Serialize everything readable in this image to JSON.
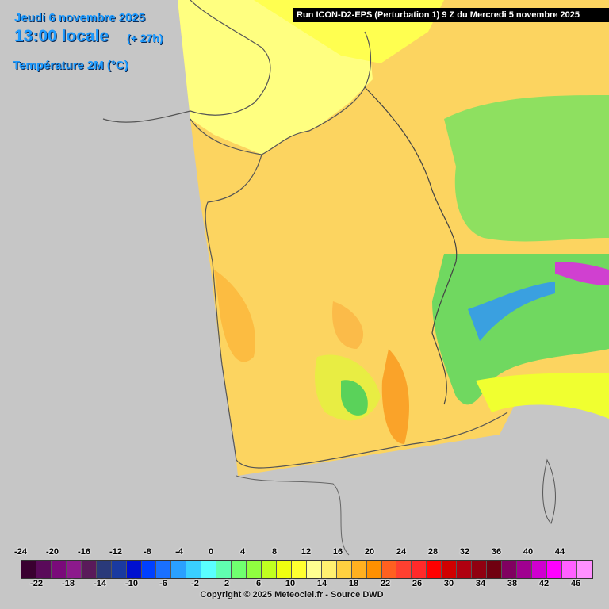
{
  "header": {
    "date": "Jeudi 6 novembre 2025",
    "time": "13:00 locale",
    "offset": "(+ 27h)",
    "parameter": "Température 2M (°C)"
  },
  "run_info": "Run ICON-D2-EPS (Perturbation 1) 9 Z du Mercredi 5 novembre 2025",
  "legend": {
    "upper_labels": [
      "-24",
      "-20",
      "-16",
      "-12",
      "-8",
      "-4",
      "0",
      "4",
      "8",
      "12",
      "16",
      "20",
      "24",
      "28",
      "32",
      "36",
      "40",
      "44"
    ],
    "lower_labels": [
      "-22",
      "-18",
      "-14",
      "-10",
      "-6",
      "-2",
      "2",
      "6",
      "10",
      "14",
      "18",
      "22",
      "26",
      "30",
      "34",
      "38",
      "42",
      "46"
    ],
    "colors": [
      "#3a0030",
      "#5a0a5a",
      "#7a0a7a",
      "#8c1a8c",
      "#5a1a5a",
      "#2a3a7a",
      "#1a3aa0",
      "#0010d0",
      "#0040ff",
      "#1a70ff",
      "#2aa0ff",
      "#3acfff",
      "#5affff",
      "#60ffb0",
      "#70ff70",
      "#90ff40",
      "#c0ff20",
      "#f0ff10",
      "#ffff30",
      "#ffff90",
      "#fff070",
      "#ffd040",
      "#ffb020",
      "#ff9000",
      "#ff6020",
      "#ff4030",
      "#ff2a2a",
      "#ff0000",
      "#d00000",
      "#b00010",
      "#900010",
      "#700010",
      "#800060",
      "#a00090",
      "#d000d0",
      "#ff00ff",
      "#ff60ff",
      "#ff90ff"
    ]
  },
  "copyright": "Copyright © 2025 Meteociel.fr - Source DWD"
}
